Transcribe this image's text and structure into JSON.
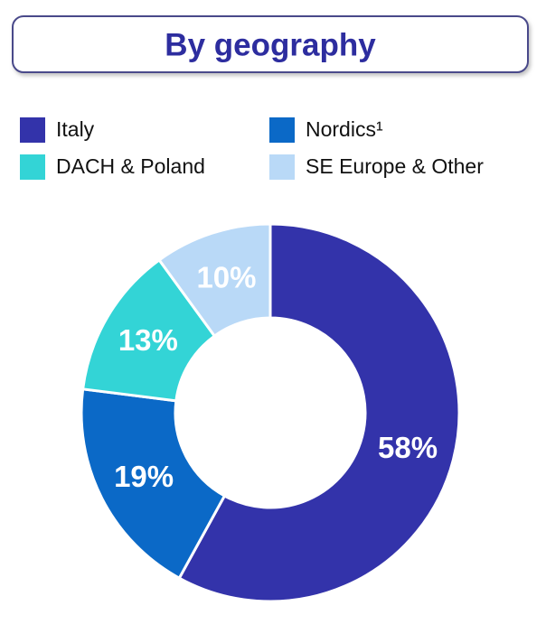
{
  "chart_data": {
    "type": "donut",
    "title": "By geography",
    "categories": [
      "Italy",
      "Nordics¹",
      "DACH & Poland",
      "SE Europe & Other"
    ],
    "values": [
      58,
      19,
      13,
      10
    ],
    "value_labels": [
      "58%",
      "19%",
      "13%",
      "10%"
    ],
    "colors": [
      "#3333aa",
      "#0b69c7",
      "#33d4d6",
      "#b9d9f7"
    ]
  }
}
